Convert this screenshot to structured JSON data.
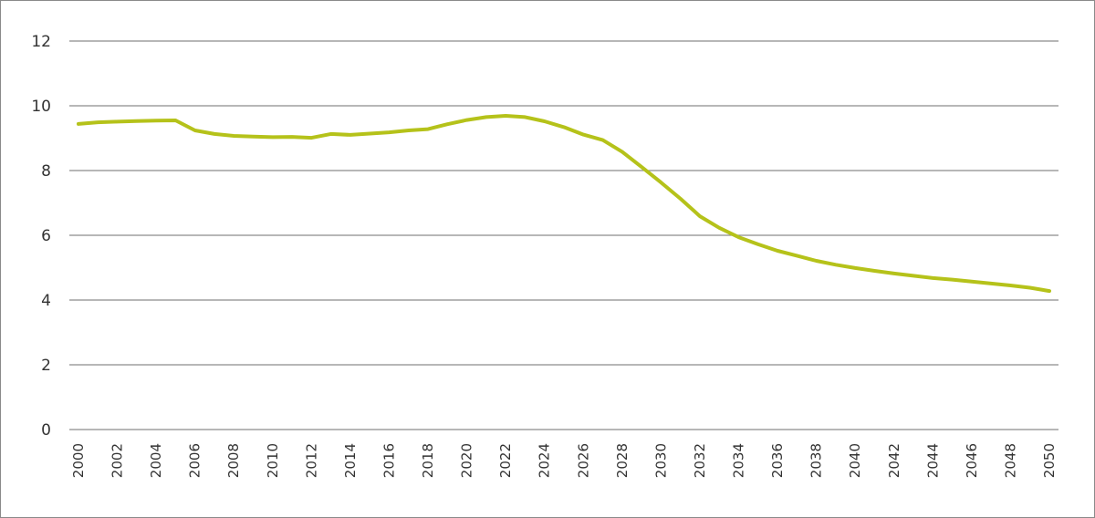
{
  "chart_data": {
    "type": "line",
    "title": "",
    "xlabel": "",
    "ylabel": "",
    "ylim": [
      0,
      12
    ],
    "yticks": [
      0,
      2,
      4,
      6,
      8,
      10,
      12
    ],
    "xlim": [
      2000,
      2050
    ],
    "xtick_labels": [
      "2000",
      "2002",
      "2004",
      "2006",
      "2008",
      "2010",
      "2012",
      "2014",
      "2016",
      "2018",
      "2020",
      "2022",
      "2024",
      "2026",
      "2028",
      "2030",
      "2032",
      "2034",
      "2036",
      "2038",
      "2040",
      "2042",
      "2044",
      "2046",
      "2048",
      "2050"
    ],
    "grid": "horizontal",
    "legend": null,
    "x": [
      2000,
      2001,
      2002,
      2003,
      2004,
      2005,
      2006,
      2007,
      2008,
      2009,
      2010,
      2011,
      2012,
      2013,
      2014,
      2015,
      2016,
      2017,
      2018,
      2019,
      2020,
      2021,
      2022,
      2023,
      2024,
      2025,
      2026,
      2027,
      2028,
      2029,
      2030,
      2031,
      2032,
      2033,
      2034,
      2035,
      2036,
      2037,
      2038,
      2039,
      2040,
      2041,
      2042,
      2043,
      2044,
      2045,
      2046,
      2047,
      2048,
      2049,
      2050
    ],
    "series": [
      {
        "name": "series-1",
        "color": "#b5c21a",
        "values": [
          9.44,
          9.49,
          9.51,
          9.53,
          9.54,
          9.55,
          9.24,
          9.13,
          9.07,
          9.05,
          9.03,
          9.04,
          9.01,
          9.13,
          9.1,
          9.14,
          9.18,
          9.24,
          9.28,
          9.43,
          9.56,
          9.65,
          9.69,
          9.65,
          9.52,
          9.34,
          9.11,
          8.94,
          8.58,
          8.11,
          7.63,
          7.13,
          6.59,
          6.23,
          5.94,
          5.72,
          5.52,
          5.37,
          5.21,
          5.09,
          4.99,
          4.9,
          4.82,
          4.75,
          4.68,
          4.63,
          4.57,
          4.51,
          4.45,
          4.38,
          4.28
        ]
      }
    ]
  },
  "colors": {
    "line": "#b5c21a",
    "grid": "#8c8c8c",
    "text": "#333333",
    "border": "#8a8a8a"
  }
}
